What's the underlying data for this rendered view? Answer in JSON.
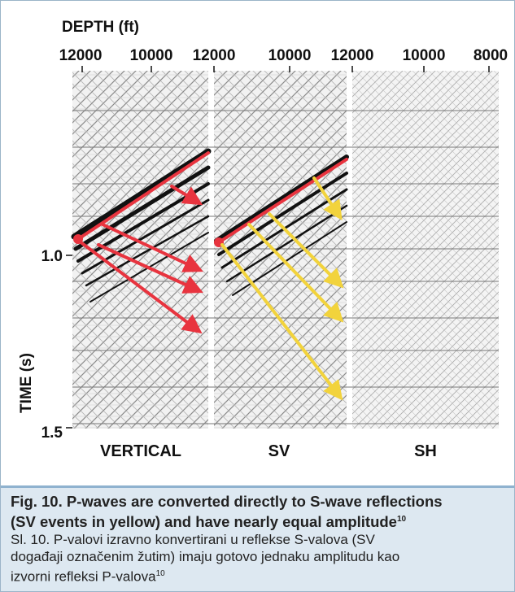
{
  "figure": {
    "axis_top": "DEPTH (ft)",
    "depth_ticks": [
      [
        "12000",
        "10000"
      ],
      [
        "12000",
        "10000"
      ],
      [
        "12000",
        "10000",
        "8000"
      ]
    ],
    "axis_left": "TIME (s)",
    "time_ticks": [
      "1.0",
      "1.5"
    ],
    "panels": [
      "VERTICAL",
      "SV",
      "SH"
    ]
  },
  "caption": {
    "bold_lines": [
      "Fig. 10. P-waves are converted directly to S-wave reflections",
      "(SV events in yellow) and have nearly equal amplitude"
    ],
    "bold_sup": "10",
    "normal_lines": [
      "Sl. 10. P-valovi izravno konvertirani u reflekse S-valova (SV",
      "događaji označenim žutim) imaju gotovo jednaku amplitudu kao",
      "izvorni refleksi P-valova"
    ],
    "normal_sup": "10"
  }
}
